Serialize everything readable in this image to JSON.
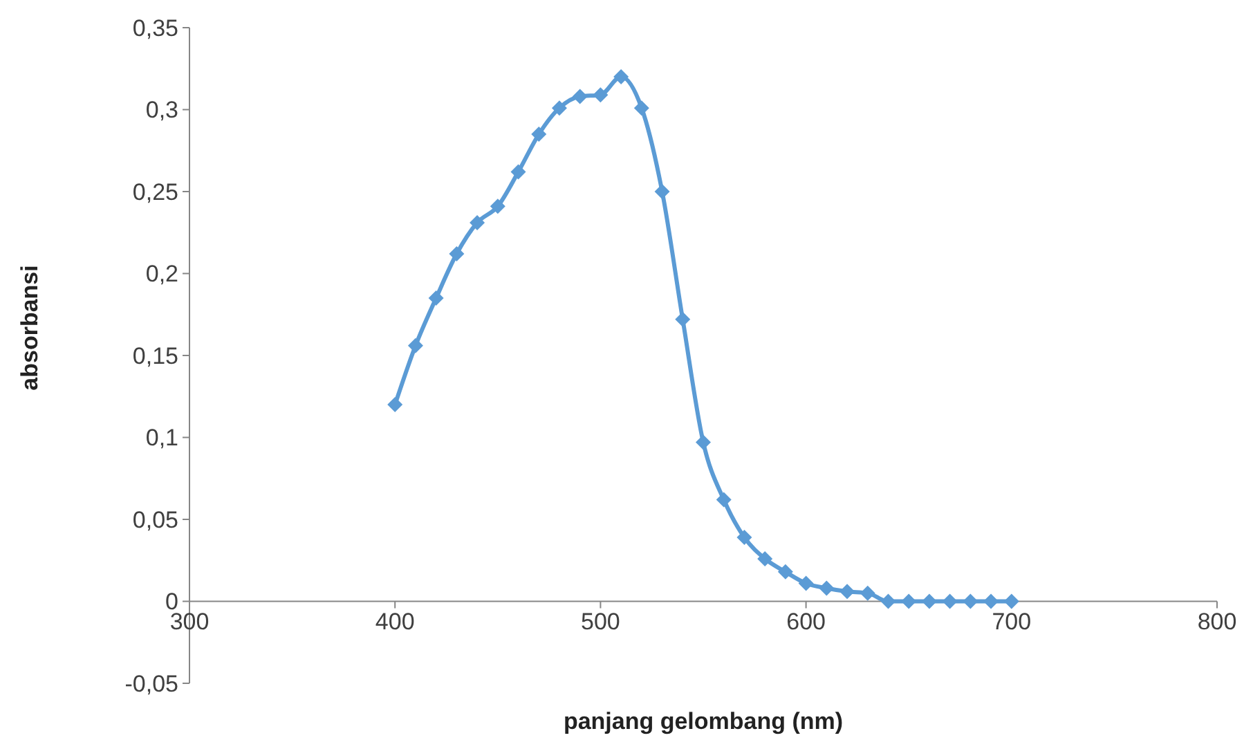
{
  "chart_data": {
    "type": "line",
    "xlabel": "panjang gelombang (nm)",
    "ylabel": "absorbansi",
    "x": [
      400,
      410,
      420,
      430,
      440,
      450,
      460,
      470,
      480,
      490,
      500,
      510,
      520,
      530,
      540,
      550,
      560,
      570,
      580,
      590,
      600,
      610,
      620,
      630,
      640,
      650,
      660,
      670,
      680,
      690,
      700
    ],
    "series": [
      {
        "color": "#5b9bd5",
        "values": [
          0.12,
          0.156,
          0.185,
          0.212,
          0.231,
          0.241,
          0.262,
          0.285,
          0.301,
          0.308,
          0.309,
          0.32,
          0.301,
          0.25,
          0.172,
          0.097,
          0.062,
          0.039,
          0.026,
          0.018,
          0.011,
          0.008,
          0.006,
          0.005,
          0,
          0,
          0,
          0,
          0,
          0,
          0
        ]
      }
    ],
    "xlim": [
      300,
      800
    ],
    "xticks": [
      300,
      400,
      500,
      600,
      700,
      800
    ],
    "ylim": [
      -0.05,
      0.35
    ],
    "yticks": [
      {
        "value": -0.05,
        "label": "-0,05"
      },
      {
        "value": 0,
        "label": "0"
      },
      {
        "value": 0.05,
        "label": "0,05"
      },
      {
        "value": 0.1,
        "label": "0,1"
      },
      {
        "value": 0.15,
        "label": "0,15"
      },
      {
        "value": 0.2,
        "label": "0,2"
      },
      {
        "value": 0.25,
        "label": "0,25"
      },
      {
        "value": 0.3,
        "label": "0,3"
      },
      {
        "value": 0.35,
        "label": "0,35"
      }
    ],
    "marker": "diamond",
    "line_style": "solid"
  }
}
